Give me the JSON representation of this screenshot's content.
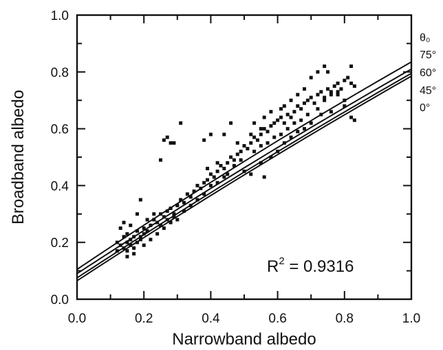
{
  "chart_data": {
    "type": "scatter",
    "title": "",
    "xlabel": "Narrowband albedo",
    "ylabel": "Broadband albedo",
    "xlim": [
      0.0,
      1.0
    ],
    "ylim": [
      0.0,
      1.0
    ],
    "x_ticks": [
      0.0,
      0.2,
      0.4,
      0.6,
      0.8,
      1.0
    ],
    "y_ticks": [
      0.0,
      0.2,
      0.4,
      0.6,
      0.8,
      1.0
    ],
    "x_tick_labels": [
      "0.0",
      "0.2",
      "0.4",
      "0.6",
      "0.8",
      "1.0"
    ],
    "y_tick_labels": [
      "0.0",
      "0.2",
      "0.4",
      "0.6",
      "0.8",
      "1.0"
    ],
    "grid": false,
    "legend_title": "θ₀",
    "annotation": {
      "base": "R",
      "sup": "2",
      "rest": " = 0.9316"
    },
    "fit_curves": [
      {
        "name": "75°",
        "y_at_0": 0.105,
        "y_at_1": 0.835,
        "curvature": 0.06
      },
      {
        "name": "60°",
        "y_at_0": 0.09,
        "y_at_1": 0.81,
        "curvature": 0.05
      },
      {
        "name": "45°",
        "y_at_0": 0.075,
        "y_at_1": 0.795,
        "curvature": 0.05
      },
      {
        "name": "0°",
        "y_at_0": 0.065,
        "y_at_1": 0.785,
        "curvature": 0.05
      }
    ],
    "points": [
      [
        0.12,
        0.2
      ],
      [
        0.13,
        0.19
      ],
      [
        0.14,
        0.22
      ],
      [
        0.14,
        0.18
      ],
      [
        0.15,
        0.2
      ],
      [
        0.15,
        0.23
      ],
      [
        0.15,
        0.17
      ],
      [
        0.16,
        0.21
      ],
      [
        0.16,
        0.19
      ],
      [
        0.17,
        0.22
      ],
      [
        0.17,
        0.18
      ],
      [
        0.18,
        0.24
      ],
      [
        0.18,
        0.2
      ],
      [
        0.19,
        0.22
      ],
      [
        0.19,
        0.21
      ],
      [
        0.2,
        0.25
      ],
      [
        0.2,
        0.23
      ],
      [
        0.21,
        0.24
      ],
      [
        0.13,
        0.25
      ],
      [
        0.14,
        0.27
      ],
      [
        0.16,
        0.26
      ],
      [
        0.18,
        0.3
      ],
      [
        0.19,
        0.35
      ],
      [
        0.12,
        0.17
      ],
      [
        0.15,
        0.15
      ],
      [
        0.17,
        0.16
      ],
      [
        0.2,
        0.19
      ],
      [
        0.22,
        0.26
      ],
      [
        0.23,
        0.28
      ],
      [
        0.24,
        0.27
      ],
      [
        0.25,
        0.3
      ],
      [
        0.26,
        0.29
      ],
      [
        0.27,
        0.31
      ],
      [
        0.28,
        0.32
      ],
      [
        0.29,
        0.3
      ],
      [
        0.3,
        0.33
      ],
      [
        0.31,
        0.35
      ],
      [
        0.32,
        0.34
      ],
      [
        0.33,
        0.37
      ],
      [
        0.34,
        0.36
      ],
      [
        0.35,
        0.38
      ],
      [
        0.36,
        0.4
      ],
      [
        0.37,
        0.39
      ],
      [
        0.38,
        0.41
      ],
      [
        0.39,
        0.42
      ],
      [
        0.4,
        0.44
      ],
      [
        0.41,
        0.43
      ],
      [
        0.42,
        0.45
      ],
      [
        0.43,
        0.47
      ],
      [
        0.44,
        0.46
      ],
      [
        0.45,
        0.48
      ],
      [
        0.46,
        0.5
      ],
      [
        0.47,
        0.49
      ],
      [
        0.48,
        0.51
      ],
      [
        0.49,
        0.52
      ],
      [
        0.5,
        0.54
      ],
      [
        0.51,
        0.53
      ],
      [
        0.52,
        0.55
      ],
      [
        0.53,
        0.57
      ],
      [
        0.54,
        0.56
      ],
      [
        0.55,
        0.58
      ],
      [
        0.56,
        0.6
      ],
      [
        0.57,
        0.59
      ],
      [
        0.58,
        0.61
      ],
      [
        0.59,
        0.62
      ],
      [
        0.6,
        0.63
      ],
      [
        0.61,
        0.64
      ],
      [
        0.62,
        0.62
      ],
      [
        0.63,
        0.65
      ],
      [
        0.64,
        0.64
      ],
      [
        0.65,
        0.66
      ],
      [
        0.66,
        0.68
      ],
      [
        0.67,
        0.67
      ],
      [
        0.68,
        0.69
      ],
      [
        0.69,
        0.7
      ],
      [
        0.7,
        0.71
      ],
      [
        0.71,
        0.69
      ],
      [
        0.72,
        0.72
      ],
      [
        0.73,
        0.73
      ],
      [
        0.74,
        0.71
      ],
      [
        0.75,
        0.74
      ],
      [
        0.76,
        0.73
      ],
      [
        0.77,
        0.75
      ],
      [
        0.78,
        0.76
      ],
      [
        0.79,
        0.74
      ],
      [
        0.8,
        0.77
      ],
      [
        0.81,
        0.78
      ],
      [
        0.82,
        0.76
      ],
      [
        0.5,
        0.45
      ],
      [
        0.52,
        0.44
      ],
      [
        0.55,
        0.48
      ],
      [
        0.56,
        0.43
      ],
      [
        0.58,
        0.5
      ],
      [
        0.6,
        0.52
      ],
      [
        0.62,
        0.55
      ],
      [
        0.64,
        0.57
      ],
      [
        0.66,
        0.59
      ],
      [
        0.68,
        0.6
      ],
      [
        0.7,
        0.62
      ],
      [
        0.73,
        0.65
      ],
      [
        0.76,
        0.66
      ],
      [
        0.8,
        0.68
      ],
      [
        0.82,
        0.64
      ],
      [
        0.83,
        0.63
      ],
      [
        0.45,
        0.44
      ],
      [
        0.47,
        0.47
      ],
      [
        0.49,
        0.49
      ],
      [
        0.53,
        0.52
      ],
      [
        0.55,
        0.54
      ],
      [
        0.57,
        0.55
      ],
      [
        0.59,
        0.57
      ],
      [
        0.61,
        0.58
      ],
      [
        0.63,
        0.6
      ],
      [
        0.65,
        0.62
      ],
      [
        0.67,
        0.63
      ],
      [
        0.69,
        0.65
      ],
      [
        0.72,
        0.67
      ],
      [
        0.74,
        0.7
      ],
      [
        0.78,
        0.72
      ],
      [
        0.3,
        0.28
      ],
      [
        0.32,
        0.31
      ],
      [
        0.34,
        0.33
      ],
      [
        0.36,
        0.35
      ],
      [
        0.38,
        0.37
      ],
      [
        0.4,
        0.4
      ],
      [
        0.42,
        0.41
      ],
      [
        0.44,
        0.43
      ],
      [
        0.25,
        0.26
      ],
      [
        0.27,
        0.28
      ],
      [
        0.29,
        0.29
      ],
      [
        0.22,
        0.21
      ],
      [
        0.24,
        0.23
      ],
      [
        0.26,
        0.25
      ],
      [
        0.28,
        0.27
      ],
      [
        0.21,
        0.28
      ],
      [
        0.23,
        0.3
      ],
      [
        0.25,
        0.49
      ],
      [
        0.26,
        0.56
      ],
      [
        0.27,
        0.57
      ],
      [
        0.28,
        0.55
      ],
      [
        0.29,
        0.55
      ],
      [
        0.31,
        0.62
      ],
      [
        0.38,
        0.56
      ],
      [
        0.4,
        0.58
      ],
      [
        0.44,
        0.58
      ],
      [
        0.46,
        0.62
      ],
      [
        0.53,
        0.62
      ],
      [
        0.56,
        0.64
      ],
      [
        0.61,
        0.67
      ],
      [
        0.64,
        0.7
      ],
      [
        0.66,
        0.72
      ],
      [
        0.68,
        0.74
      ],
      [
        0.7,
        0.78
      ],
      [
        0.72,
        0.8
      ],
      [
        0.74,
        0.82
      ],
      [
        0.75,
        0.8
      ],
      [
        0.78,
        0.73
      ],
      [
        0.82,
        0.82
      ],
      [
        0.83,
        0.75
      ],
      [
        0.8,
        0.7
      ],
      [
        0.76,
        0.72
      ],
      [
        0.62,
        0.68
      ],
      [
        0.58,
        0.66
      ],
      [
        0.55,
        0.6
      ],
      [
        0.52,
        0.58
      ],
      [
        0.48,
        0.55
      ],
      [
        0.42,
        0.48
      ],
      [
        0.39,
        0.46
      ]
    ]
  }
}
